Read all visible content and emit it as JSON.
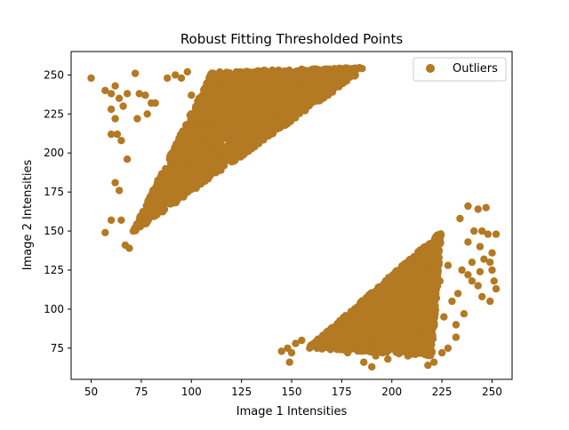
{
  "chart_data": {
    "type": "scatter",
    "title": "Robust Fitting Thresholded Points",
    "xlabel": "Image 1 Intensities",
    "ylabel": "Image 2 Intensities",
    "xlim": [
      40,
      260
    ],
    "ylim": [
      55,
      265
    ],
    "xticks": [
      50,
      75,
      100,
      125,
      150,
      175,
      200,
      225,
      250
    ],
    "yticks": [
      75,
      100,
      125,
      150,
      175,
      200,
      225,
      250
    ],
    "grid": false,
    "legend_position": "top-right",
    "series": [
      {
        "name": "Outliers",
        "color": "#b37923",
        "clusters": [
          {
            "description_shape": "triangle",
            "vertices": [
              [
                70,
                148
              ],
              [
                110,
                252
              ],
              [
                188,
                255
              ]
            ]
          },
          {
            "description_shape": "triangle",
            "vertices": [
              [
                158,
                75
              ],
              [
                225,
                150
              ],
              [
                220,
                70
              ]
            ]
          }
        ],
        "points": [
          [
            50,
            248
          ],
          [
            57,
            240
          ],
          [
            60,
            238
          ],
          [
            62,
            243
          ],
          [
            64,
            235
          ],
          [
            60,
            228
          ],
          [
            62,
            222
          ],
          [
            66,
            230
          ],
          [
            68,
            238
          ],
          [
            72,
            251
          ],
          [
            60,
            212
          ],
          [
            63,
            212
          ],
          [
            65,
            208
          ],
          [
            62,
            181
          ],
          [
            64,
            176
          ],
          [
            60,
            157
          ],
          [
            65,
            157
          ],
          [
            57,
            149
          ],
          [
            67,
            141
          ],
          [
            69,
            139
          ],
          [
            71,
            150
          ],
          [
            68,
            196
          ],
          [
            73,
            222
          ],
          [
            78,
            225
          ],
          [
            82,
            232
          ],
          [
            88,
            248
          ],
          [
            92,
            250
          ],
          [
            95,
            248
          ],
          [
            98,
            252
          ],
          [
            100,
            237
          ],
          [
            77,
            237
          ],
          [
            80,
            232
          ],
          [
            74,
            238
          ],
          [
            145,
            73
          ],
          [
            148,
            75
          ],
          [
            150,
            72
          ],
          [
            152,
            78
          ],
          [
            149,
            66
          ],
          [
            155,
            80
          ],
          [
            160,
            77
          ],
          [
            165,
            76
          ],
          [
            170,
            80
          ],
          [
            175,
            77
          ],
          [
            178,
            72
          ],
          [
            186,
            66
          ],
          [
            190,
            63
          ],
          [
            192,
            70
          ],
          [
            195,
            75
          ],
          [
            198,
            68
          ],
          [
            203,
            72
          ],
          [
            208,
            70
          ],
          [
            212,
            74
          ],
          [
            218,
            64
          ],
          [
            221,
            66
          ],
          [
            225,
            72
          ],
          [
            228,
            75
          ],
          [
            232,
            82
          ],
          [
            226,
            95
          ],
          [
            230,
            105
          ],
          [
            233,
            110
          ],
          [
            235,
            125
          ],
          [
            240,
            130
          ],
          [
            244,
            140
          ],
          [
            248,
            148
          ],
          [
            249,
            130
          ],
          [
            250,
            125
          ],
          [
            251,
            118
          ],
          [
            252,
            113
          ],
          [
            249,
            105
          ],
          [
            245,
            108
          ],
          [
            240,
            118
          ],
          [
            238,
            122
          ],
          [
            236,
            97
          ],
          [
            232,
            90
          ],
          [
            238,
            143
          ],
          [
            241,
            150
          ],
          [
            243,
            164
          ],
          [
            247,
            165
          ],
          [
            238,
            166
          ],
          [
            234,
            158
          ],
          [
            245,
            150
          ],
          [
            244,
            124
          ],
          [
            228,
            128
          ],
          [
            224,
            118
          ],
          [
            222,
            110
          ],
          [
            220,
            96
          ],
          [
            218,
            88
          ],
          [
            217,
            80
          ],
          [
            252,
            148
          ],
          [
            250,
            136
          ],
          [
            246,
            132
          ],
          [
            243,
            115
          ]
        ]
      }
    ]
  }
}
